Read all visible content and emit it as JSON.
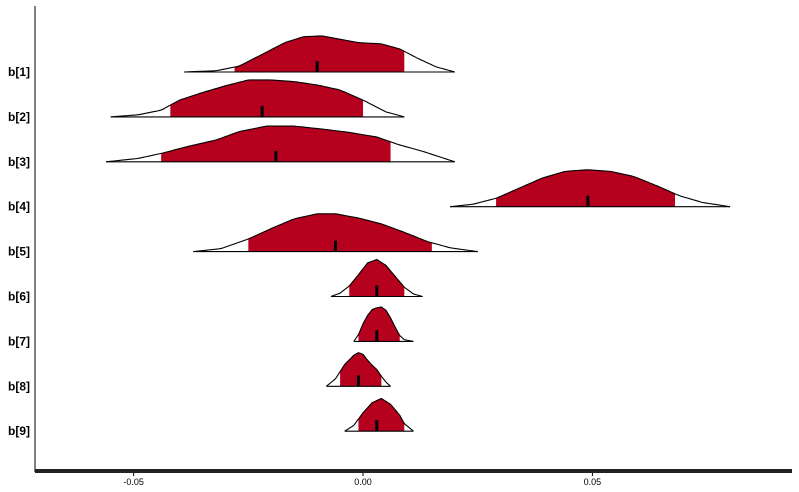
{
  "chart_data": {
    "type": "ridgeline",
    "title": "",
    "xlabel": "",
    "ylabel": "",
    "xlim": [
      -0.0715,
      0.0935
    ],
    "x_ticks": [
      -0.05,
      0.0,
      0.05
    ],
    "x_tick_labels": [
      "-0.05",
      "0.00",
      "0.05"
    ],
    "fill_color": "#b5001e",
    "series": [
      {
        "name": "b[1]",
        "min": -0.039,
        "lo": -0.028,
        "median": -0.01,
        "hi": 0.009,
        "max": 0.02,
        "density": [
          [
            -0.039,
            0.0
          ],
          [
            -0.032,
            0.03
          ],
          [
            -0.027,
            0.14
          ],
          [
            -0.022,
            0.42
          ],
          [
            -0.017,
            0.7
          ],
          [
            -0.013,
            0.84
          ],
          [
            -0.009,
            0.86
          ],
          [
            -0.005,
            0.78
          ],
          [
            -0.001,
            0.7
          ],
          [
            0.004,
            0.67
          ],
          [
            0.008,
            0.55
          ],
          [
            0.012,
            0.32
          ],
          [
            0.016,
            0.12
          ],
          [
            0.02,
            0.0
          ]
        ]
      },
      {
        "name": "b[2]",
        "min": -0.055,
        "lo": -0.042,
        "median": -0.022,
        "hi": 0.0,
        "max": 0.009,
        "density": [
          [
            -0.055,
            0.0
          ],
          [
            -0.049,
            0.05
          ],
          [
            -0.044,
            0.16
          ],
          [
            -0.04,
            0.4
          ],
          [
            -0.035,
            0.58
          ],
          [
            -0.03,
            0.74
          ],
          [
            -0.025,
            0.88
          ],
          [
            -0.02,
            0.88
          ],
          [
            -0.015,
            0.84
          ],
          [
            -0.01,
            0.76
          ],
          [
            -0.005,
            0.64
          ],
          [
            0.0,
            0.4
          ],
          [
            0.005,
            0.12
          ],
          [
            0.009,
            0.0
          ]
        ]
      },
      {
        "name": "b[3]",
        "min": -0.056,
        "lo": -0.044,
        "median": -0.019,
        "hi": 0.006,
        "max": 0.02,
        "density": [
          [
            -0.056,
            0.0
          ],
          [
            -0.049,
            0.08
          ],
          [
            -0.044,
            0.2
          ],
          [
            -0.038,
            0.37
          ],
          [
            -0.032,
            0.52
          ],
          [
            -0.027,
            0.72
          ],
          [
            -0.021,
            0.85
          ],
          [
            -0.015,
            0.85
          ],
          [
            -0.009,
            0.78
          ],
          [
            -0.003,
            0.7
          ],
          [
            0.003,
            0.59
          ],
          [
            0.008,
            0.4
          ],
          [
            0.013,
            0.25
          ],
          [
            0.02,
            0.0
          ]
        ]
      },
      {
        "name": "b[4]",
        "min": 0.019,
        "lo": 0.029,
        "median": 0.049,
        "hi": 0.068,
        "max": 0.08,
        "density": [
          [
            0.019,
            0.0
          ],
          [
            0.024,
            0.06
          ],
          [
            0.029,
            0.2
          ],
          [
            0.034,
            0.44
          ],
          [
            0.039,
            0.68
          ],
          [
            0.044,
            0.84
          ],
          [
            0.049,
            0.88
          ],
          [
            0.054,
            0.84
          ],
          [
            0.059,
            0.72
          ],
          [
            0.064,
            0.5
          ],
          [
            0.069,
            0.26
          ],
          [
            0.074,
            0.1
          ],
          [
            0.08,
            0.0
          ]
        ]
      },
      {
        "name": "b[5]",
        "min": -0.037,
        "lo": -0.025,
        "median": -0.006,
        "hi": 0.015,
        "max": 0.025,
        "density": [
          [
            -0.037,
            0.0
          ],
          [
            -0.031,
            0.07
          ],
          [
            -0.025,
            0.3
          ],
          [
            -0.02,
            0.55
          ],
          [
            -0.015,
            0.78
          ],
          [
            -0.01,
            0.9
          ],
          [
            -0.006,
            0.9
          ],
          [
            -0.001,
            0.8
          ],
          [
            0.004,
            0.66
          ],
          [
            0.009,
            0.46
          ],
          [
            0.014,
            0.24
          ],
          [
            0.019,
            0.09
          ],
          [
            0.025,
            0.0
          ]
        ]
      },
      {
        "name": "b[6]",
        "min": -0.007,
        "lo": -0.003,
        "median": 0.003,
        "hi": 0.009,
        "max": 0.013,
        "density": [
          [
            -0.007,
            0.0
          ],
          [
            -0.005,
            0.08
          ],
          [
            -0.003,
            0.25
          ],
          [
            -0.001,
            0.52
          ],
          [
            0.001,
            0.8
          ],
          [
            0.003,
            0.88
          ],
          [
            0.005,
            0.74
          ],
          [
            0.007,
            0.48
          ],
          [
            0.009,
            0.22
          ],
          [
            0.011,
            0.06
          ],
          [
            0.013,
            0.0
          ]
        ]
      },
      {
        "name": "b[7]",
        "min": -0.002,
        "lo": -0.001,
        "median": 0.003,
        "hi": 0.008,
        "max": 0.011,
        "density": [
          [
            -0.002,
            0.0
          ],
          [
            -0.001,
            0.16
          ],
          [
            0.0,
            0.42
          ],
          [
            0.001,
            0.62
          ],
          [
            0.002,
            0.76
          ],
          [
            0.003,
            0.8
          ],
          [
            0.004,
            0.82
          ],
          [
            0.005,
            0.74
          ],
          [
            0.006,
            0.56
          ],
          [
            0.007,
            0.34
          ],
          [
            0.008,
            0.14
          ],
          [
            0.009,
            0.04
          ],
          [
            0.011,
            0.0
          ]
        ]
      },
      {
        "name": "b[8]",
        "min": -0.008,
        "lo": -0.005,
        "median": -0.001,
        "hi": 0.004,
        "max": 0.006,
        "density": [
          [
            -0.008,
            0.0
          ],
          [
            -0.006,
            0.18
          ],
          [
            -0.004,
            0.52
          ],
          [
            -0.002,
            0.74
          ],
          [
            -0.001,
            0.8
          ],
          [
            0.0,
            0.76
          ],
          [
            0.001,
            0.62
          ],
          [
            0.002,
            0.5
          ],
          [
            0.003,
            0.4
          ],
          [
            0.004,
            0.24
          ],
          [
            0.005,
            0.1
          ],
          [
            0.006,
            0.0
          ]
        ]
      },
      {
        "name": "b[9]",
        "min": -0.004,
        "lo": -0.001,
        "median": 0.003,
        "hi": 0.009,
        "max": 0.011,
        "density": [
          [
            -0.004,
            0.0
          ],
          [
            -0.002,
            0.14
          ],
          [
            0.0,
            0.44
          ],
          [
            0.002,
            0.68
          ],
          [
            0.004,
            0.78
          ],
          [
            0.006,
            0.64
          ],
          [
            0.008,
            0.38
          ],
          [
            0.009,
            0.18
          ],
          [
            0.011,
            0.0
          ]
        ]
      }
    ]
  }
}
